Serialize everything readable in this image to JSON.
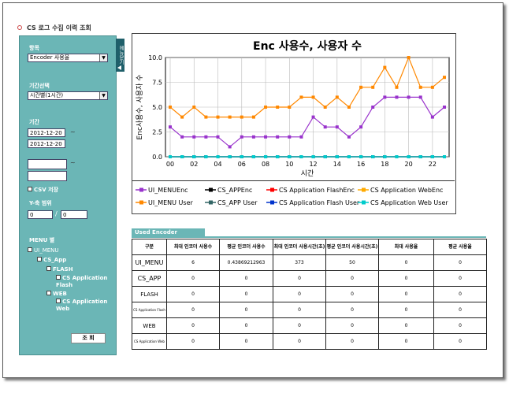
{
  "page": {
    "title": "CS 로그 수집 이력 조회"
  },
  "sidebar": {
    "item_label": "항목",
    "item_select": "Encoder 사용율",
    "period_label": "기간선택",
    "period_select": "시간별(1시간)",
    "date_label": "기간",
    "date_from": "2012-12-20",
    "date_to": "2012-12-20",
    "tilde": "~",
    "csv_label": "CSV 저장",
    "yaxis_label": "Y-축 범위",
    "yaxis_min": "0",
    "yaxis_sep": "/",
    "yaxis_max": "0",
    "menu_label": "MENU 별",
    "menu_items": [
      {
        "label": "UI_MENU"
      },
      {
        "label": "CS_App"
      },
      {
        "label": "FLASH"
      },
      {
        "label": "CS Application Flash"
      },
      {
        "label": "WEB"
      },
      {
        "label": "CS Application Web"
      }
    ],
    "search_button": "조 회",
    "side_tab": "메뉴닫기"
  },
  "chart_data": {
    "type": "line",
    "title": "Enc 사용수, 사용자 수",
    "xlabel": "시간",
    "ylabel": "Enc사용수, 사용자 수",
    "ylim": [
      0,
      10
    ],
    "yticks": [
      "0.0",
      "2.5",
      "5.0",
      "7.5",
      "10.0"
    ],
    "x": [
      0,
      1,
      2,
      3,
      4,
      5,
      6,
      7,
      8,
      9,
      10,
      11,
      12,
      13,
      14,
      15,
      16,
      17,
      18,
      19,
      20,
      21,
      22,
      23
    ],
    "xticks": [
      "00",
      "02",
      "04",
      "06",
      "08",
      "10",
      "12",
      "14",
      "16",
      "18",
      "20",
      "22"
    ],
    "grid": true,
    "legend_position": "bottom",
    "series": [
      {
        "name": "UI_MENUEnc",
        "color": "#9933cc",
        "marker": "square",
        "values": [
          3,
          2,
          2,
          2,
          2,
          1,
          2,
          2,
          2,
          2,
          2,
          2,
          4,
          3,
          3,
          2,
          3,
          5,
          6,
          6,
          6,
          6,
          4,
          5
        ]
      },
      {
        "name": "CS_APPEnc",
        "color": "#000000",
        "marker": "circle",
        "values": [
          0,
          0,
          0,
          0,
          0,
          0,
          0,
          0,
          0,
          0,
          0,
          0,
          0,
          0,
          0,
          0,
          0,
          0,
          0,
          0,
          0,
          0,
          0,
          0
        ]
      },
      {
        "name": "CS Application FlashEnc",
        "color": "#ff0000",
        "marker": "triangle",
        "values": [
          0,
          0,
          0,
          0,
          0,
          0,
          0,
          0,
          0,
          0,
          0,
          0,
          0,
          0,
          0,
          0,
          0,
          0,
          0,
          0,
          0,
          0,
          0,
          0
        ]
      },
      {
        "name": "CS Application WebEnc",
        "color": "#ffaa00",
        "marker": "diamond",
        "values": [
          0,
          0,
          0,
          0,
          0,
          0,
          0,
          0,
          0,
          0,
          0,
          0,
          0,
          0,
          0,
          0,
          0,
          0,
          0,
          0,
          0,
          0,
          0,
          0
        ]
      },
      {
        "name": "UI_MENU User",
        "color": "#ff8800",
        "marker": "square",
        "values": [
          5,
          4,
          5,
          4,
          4,
          4,
          4,
          4,
          5,
          5,
          5,
          6,
          6,
          5,
          6,
          5,
          7,
          7,
          9,
          7,
          10,
          7,
          7,
          8
        ]
      },
      {
        "name": "CS_APP User",
        "color": "#336666",
        "marker": "triangle-down",
        "values": [
          0,
          0,
          0,
          0,
          0,
          0,
          0,
          0,
          0,
          0,
          0,
          0,
          0,
          0,
          0,
          0,
          0,
          0,
          0,
          0,
          0,
          0,
          0,
          0
        ]
      },
      {
        "name": "CS Application Flash User",
        "color": "#0033cc",
        "marker": "arrow",
        "values": [
          0,
          0,
          0,
          0,
          0,
          0,
          0,
          0,
          0,
          0,
          0,
          0,
          0,
          0,
          0,
          0,
          0,
          0,
          0,
          0,
          0,
          0,
          0,
          0
        ]
      },
      {
        "name": "CS Application Web User",
        "color": "#00cccc",
        "marker": "triangle-left",
        "values": [
          0,
          0,
          0,
          0,
          0,
          0,
          0,
          0,
          0,
          0,
          0,
          0,
          0,
          0,
          0,
          0,
          0,
          0,
          0,
          0,
          0,
          0,
          0,
          0
        ]
      }
    ]
  },
  "table": {
    "tab_label": "Used Encoder",
    "headers": [
      "구분",
      "최대 인코더 사용수",
      "평균 인코더 사용수",
      "최대 인코더 사용시간(초)",
      "평균 인코더 사용시간(초)",
      "최대 사용율",
      "평균 사용율"
    ],
    "rows": [
      [
        "UI_MENU",
        "6",
        "0.43869212963",
        "373",
        "50",
        "0",
        "0"
      ],
      [
        "CS_APP",
        "0",
        "0",
        "0",
        "0",
        "0",
        "0"
      ],
      [
        "FLASH",
        "0",
        "0",
        "0",
        "0",
        "0",
        "0"
      ],
      [
        "CS Application Flash",
        "0",
        "0",
        "0",
        "0",
        "0",
        "0"
      ],
      [
        "WEB",
        "0",
        "0",
        "0",
        "0",
        "0",
        "0"
      ],
      [
        "CS Application Web",
        "0",
        "0",
        "0",
        "0",
        "0",
        "0"
      ]
    ]
  }
}
